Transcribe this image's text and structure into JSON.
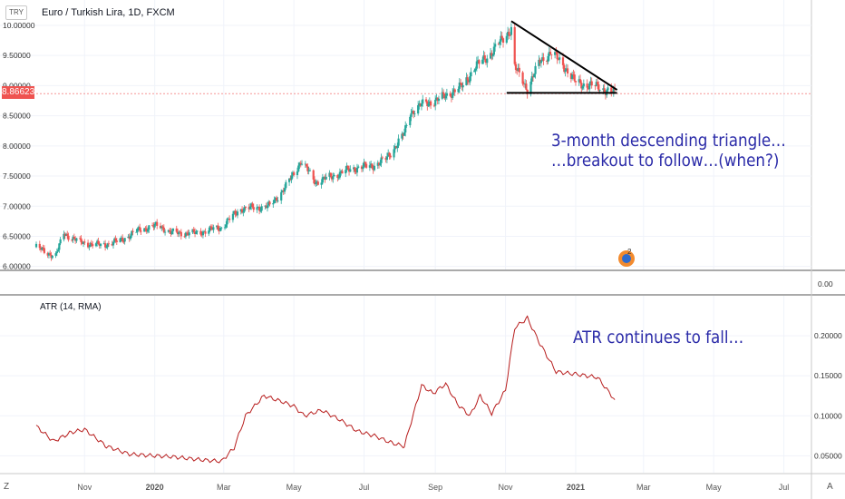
{
  "header": {
    "symbol_badge": "TRY",
    "title": "Euro / Turkish Lira, 1D, FXCM",
    "current_price_label": "8.86623"
  },
  "indicator": {
    "title": "ATR (14, RMA)"
  },
  "annotations": {
    "triangle_text": "3-month descending triangle…\n…breakout to follow…(when?)",
    "atr_text": "ATR continues to fall…"
  },
  "footer": {
    "left_button": "Z",
    "right_button": "A"
  },
  "logo_badge": "2",
  "colors": {
    "up": "#26a69a",
    "down": "#ef5350",
    "atr_line": "#b71c1c",
    "annotation": "#2a2aa8",
    "grid": "#f0f3fa",
    "price_line": "#ef5350"
  },
  "chart_data": [
    {
      "type": "candlestick",
      "title": "Euro / Turkish Lira, 1D, FXCM",
      "x_axis": {
        "tick_labels": [
          "Nov",
          "2020",
          "Mar",
          "May",
          "Jul",
          "Sep",
          "Nov",
          "2021",
          "Mar",
          "May",
          "Jul"
        ],
        "range": [
          "2019-09-20",
          "2021-07-25"
        ]
      },
      "y_axis": {
        "tick_labels": [
          "6.00000",
          "6.50000",
          "7.00000",
          "7.50000",
          "8.00000",
          "8.50000",
          "9.00000",
          "9.50000",
          "10.00000"
        ],
        "range": [
          5.95,
          10.12
        ]
      },
      "current_price": 8.86623,
      "grid": true,
      "close_path": [
        [
          "2019-09-20",
          6.32
        ],
        [
          "2019-09-30",
          6.22
        ],
        [
          "2019-10-07",
          6.18
        ],
        [
          "2019-10-14",
          6.55
        ],
        [
          "2019-10-28",
          6.4
        ],
        [
          "2019-11-15",
          6.35
        ],
        [
          "2019-12-01",
          6.42
        ],
        [
          "2019-12-20",
          6.62
        ],
        [
          "2020-01-05",
          6.68
        ],
        [
          "2020-01-15",
          6.56
        ],
        [
          "2020-02-05",
          6.55
        ],
        [
          "2020-02-28",
          6.65
        ],
        [
          "2020-03-15",
          6.95
        ],
        [
          "2020-04-10",
          7.0
        ],
        [
          "2020-04-25",
          7.35
        ],
        [
          "2020-05-07",
          7.75
        ],
        [
          "2020-05-20",
          7.4
        ],
        [
          "2020-06-01",
          7.48
        ],
        [
          "2020-06-20",
          7.62
        ],
        [
          "2020-07-10",
          7.68
        ],
        [
          "2020-07-20",
          7.78
        ],
        [
          "2020-08-05",
          8.2
        ],
        [
          "2020-08-10",
          8.55
        ],
        [
          "2020-08-20",
          8.68
        ],
        [
          "2020-09-05",
          8.78
        ],
        [
          "2020-09-25",
          9.0
        ],
        [
          "2020-10-05",
          9.3
        ],
        [
          "2020-10-20",
          9.55
        ],
        [
          "2020-11-06",
          9.95
        ],
        [
          "2020-11-09",
          9.3
        ],
        [
          "2020-11-20",
          8.95
        ],
        [
          "2020-12-01",
          9.4
        ],
        [
          "2020-12-10",
          9.55
        ],
        [
          "2020-12-20",
          9.38
        ],
        [
          "2021-01-01",
          9.05
        ],
        [
          "2021-01-20",
          8.98
        ],
        [
          "2021-02-04",
          8.87
        ]
      ],
      "descending_triangle": {
        "upper_trendline": [
          [
            "2020-11-06",
            10.07
          ],
          [
            "2021-02-06",
            8.93
          ]
        ],
        "support_line": [
          [
            "2020-11-02",
            8.88
          ],
          [
            "2021-02-06",
            8.88
          ]
        ]
      }
    },
    {
      "type": "line",
      "title": "ATR (14, RMA)",
      "y_axis": {
        "tick_labels": [
          "0.05000",
          "0.10000",
          "0.15000",
          "0.20000"
        ],
        "range": [
          0.03,
          0.25
        ]
      },
      "series": [
        {
          "name": "ATR (14, RMA)",
          "points": [
            [
              "2019-09-20",
              0.087
            ],
            [
              "2019-10-05",
              0.068
            ],
            [
              "2019-10-20",
              0.079
            ],
            [
              "2019-11-01",
              0.083
            ],
            [
              "2019-11-20",
              0.062
            ],
            [
              "2019-12-10",
              0.052
            ],
            [
              "2020-01-01",
              0.05
            ],
            [
              "2020-01-15",
              0.049
            ],
            [
              "2020-02-10",
              0.045
            ],
            [
              "2020-02-28",
              0.043
            ],
            [
              "2020-03-10",
              0.06
            ],
            [
              "2020-03-20",
              0.1
            ],
            [
              "2020-04-05",
              0.125
            ],
            [
              "2020-04-20",
              0.118
            ],
            [
              "2020-05-01",
              0.112
            ],
            [
              "2020-05-10",
              0.1
            ],
            [
              "2020-05-25",
              0.107
            ],
            [
              "2020-06-10",
              0.095
            ],
            [
              "2020-06-25",
              0.081
            ],
            [
              "2020-07-10",
              0.075
            ],
            [
              "2020-07-25",
              0.066
            ],
            [
              "2020-08-05",
              0.062
            ],
            [
              "2020-08-20",
              0.138
            ],
            [
              "2020-08-30",
              0.128
            ],
            [
              "2020-09-10",
              0.14
            ],
            [
              "2020-09-20",
              0.115
            ],
            [
              "2020-10-01",
              0.1
            ],
            [
              "2020-10-10",
              0.125
            ],
            [
              "2020-10-20",
              0.103
            ],
            [
              "2020-11-01",
              0.132
            ],
            [
              "2020-11-09",
              0.21
            ],
            [
              "2020-11-20",
              0.222
            ],
            [
              "2020-12-01",
              0.19
            ],
            [
              "2020-12-15",
              0.155
            ],
            [
              "2021-01-01",
              0.152
            ],
            [
              "2021-01-20",
              0.148
            ],
            [
              "2021-02-04",
              0.12
            ]
          ]
        }
      ],
      "grid": true
    }
  ]
}
